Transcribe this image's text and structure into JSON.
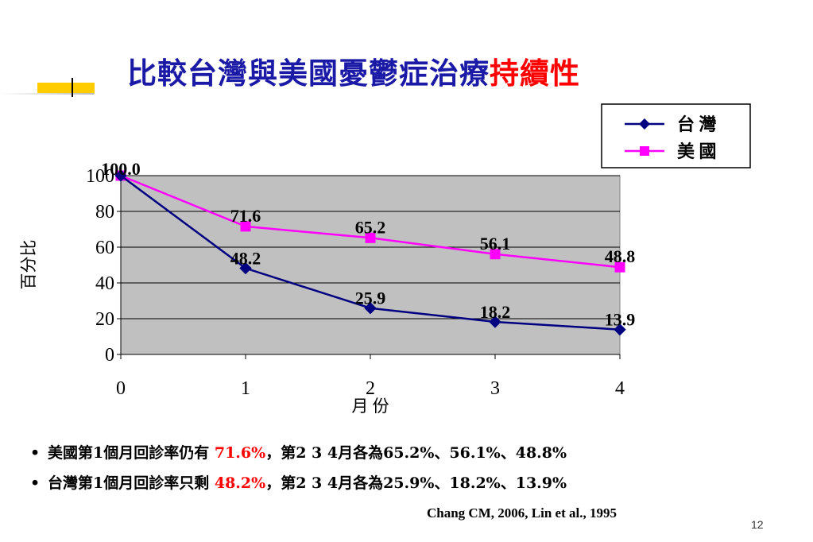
{
  "slide": {
    "title_main": "比較台灣與美國憂鬱症治療",
    "title_highlight": "持續性",
    "bullets": [
      {
        "prefix": "美國第1個月回診率仍有 ",
        "highlight": "71.6%",
        "suffix": "，第2 3 4月各為65.2%、56.1%、48.8%"
      },
      {
        "prefix": "台灣第1個月回診率只剩 ",
        "highlight": "48.2%",
        "suffix": "，第2 3 4月各為25.9%、18.2%、13.9%"
      }
    ],
    "bullet_char": "•",
    "citation": "Chang CM, 2006, Lin et al., 1995",
    "page_number": "12"
  },
  "chart_data": {
    "type": "line",
    "title": "",
    "xlabel": "月 份",
    "ylabel": "百分比",
    "x": [
      0,
      1,
      2,
      3,
      4
    ],
    "x_tick_labels": [
      "0",
      "1",
      "2",
      "3",
      "4"
    ],
    "y_tick_labels": [
      "0",
      "20",
      "40",
      "60",
      "80",
      "100"
    ],
    "xlim": [
      0,
      4
    ],
    "ylim": [
      0,
      100
    ],
    "grid": true,
    "plot_background": "#c0c0c0",
    "legend_position": "top-right",
    "series": [
      {
        "name": "台 灣",
        "color": "#000080",
        "marker": "diamond",
        "values": [
          100.0,
          48.2,
          25.9,
          18.2,
          13.9
        ],
        "labels": [
          "100.0",
          "48.2",
          "25.9",
          "18.2",
          "13.9"
        ]
      },
      {
        "name": "美 國",
        "color": "#ff00ff",
        "marker": "square",
        "values": [
          100.0,
          71.6,
          65.2,
          56.1,
          48.8
        ],
        "labels": [
          "",
          "71.6",
          "65.2",
          "56.1",
          "48.8"
        ]
      }
    ]
  }
}
